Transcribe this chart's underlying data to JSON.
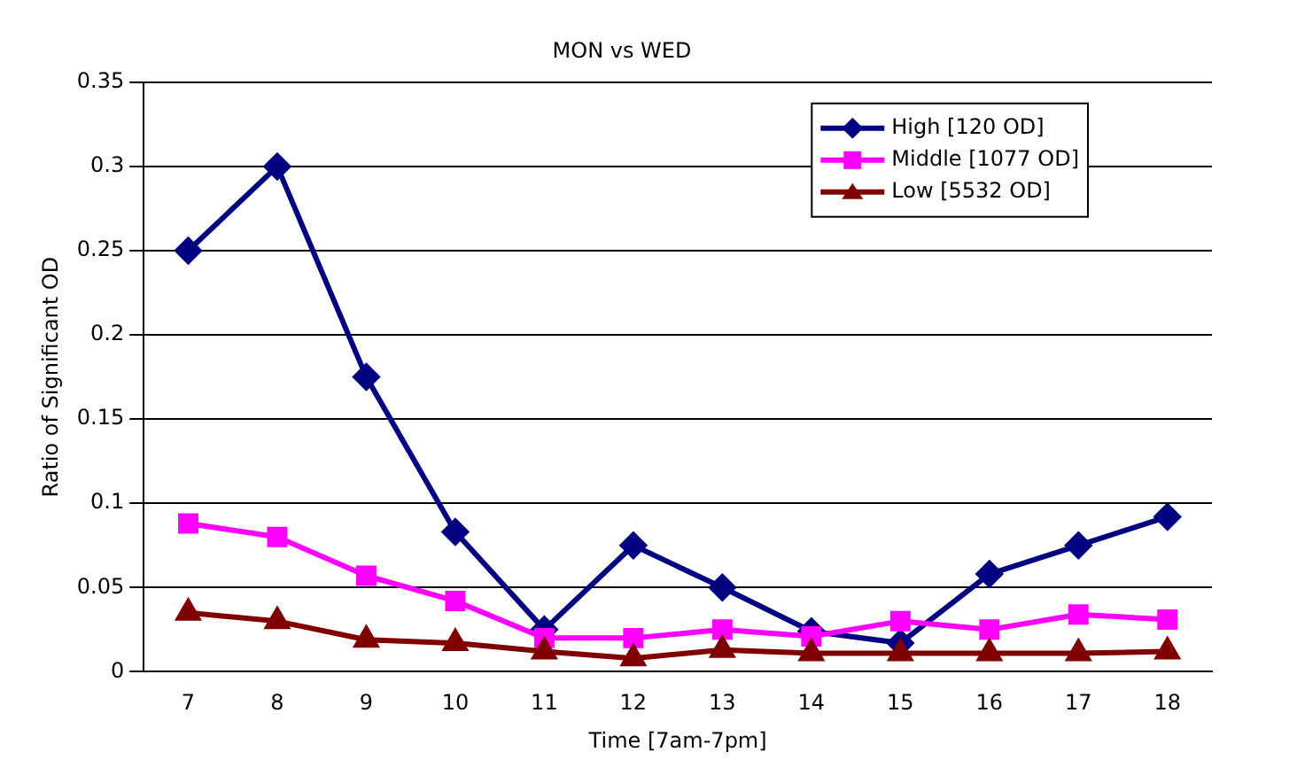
{
  "chart_data": {
    "type": "line",
    "title": "MON vs WED",
    "xlabel": "Time [7am-7pm]",
    "ylabel": "Ratio of Significant OD",
    "categories": [
      "7",
      "8",
      "9",
      "10",
      "11",
      "12",
      "13",
      "14",
      "15",
      "16",
      "17",
      "18"
    ],
    "series": [
      {
        "name": "High [120 OD]",
        "color": "#000080",
        "marker": "diamond",
        "values": [
          0.25,
          0.3,
          0.175,
          0.083,
          0.025,
          0.075,
          0.05,
          0.024,
          0.017,
          0.058,
          0.075,
          0.092
        ]
      },
      {
        "name": "Middle [1077 OD]",
        "color": "#ff00ff",
        "marker": "square",
        "values": [
          0.088,
          0.08,
          0.057,
          0.042,
          0.02,
          0.02,
          0.025,
          0.021,
          0.03,
          0.025,
          0.034,
          0.031
        ]
      },
      {
        "name": "Low [5532 OD]",
        "color": "#800000",
        "marker": "triangle",
        "values": [
          0.035,
          0.03,
          0.019,
          0.017,
          0.012,
          0.008,
          0.013,
          0.011,
          0.011,
          0.011,
          0.011,
          0.012
        ]
      }
    ],
    "ylim": [
      0,
      0.35
    ],
    "yticks": [
      0,
      0.05,
      0.1,
      0.15,
      0.2,
      0.25,
      0.3,
      0.35
    ],
    "grid": "y",
    "legend": "top right",
    "line_style": "solid"
  }
}
